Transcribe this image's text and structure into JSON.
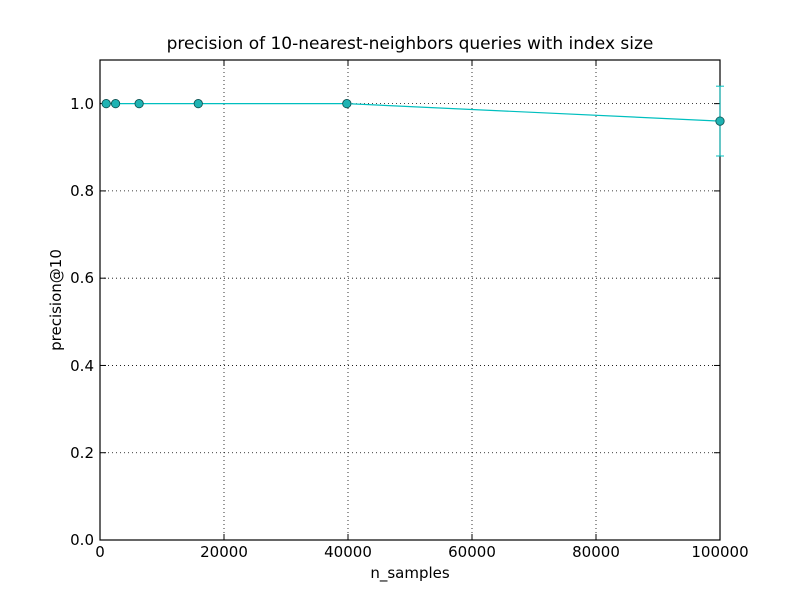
{
  "chart_data": {
    "type": "line",
    "title": "precision of 10-nearest-neighbors queries with index size",
    "xlabel": "n_samples",
    "ylabel": "precision@10",
    "xlim": [
      0,
      100000
    ],
    "ylim": [
      0.0,
      1.1
    ],
    "grid": true,
    "legend": null,
    "x_ticks": [
      "0",
      "20000",
      "40000",
      "60000",
      "80000",
      "100000"
    ],
    "y_ticks": [
      "0.0",
      "0.2",
      "0.4",
      "0.6",
      "0.8",
      "1.0"
    ],
    "series": [
      {
        "name": "precision@10",
        "color": "#00bfbf",
        "marker": "o",
        "x": [
          1000,
          2512,
          6310,
          15849,
          39811,
          100000
        ],
        "y": [
          1.0,
          1.0,
          1.0,
          1.0,
          1.0,
          0.96
        ],
        "yerr": [
          0.0,
          0.0,
          0.0,
          0.0,
          0.0,
          0.08
        ]
      }
    ]
  }
}
